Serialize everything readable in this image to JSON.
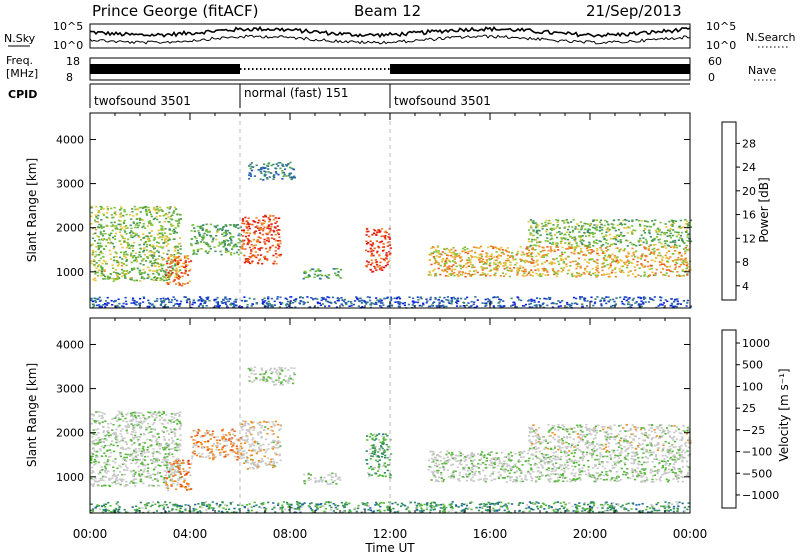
{
  "header": {
    "station": "Prince George (fitACF)",
    "beam": "Beam 12",
    "date": "21/Sep/2013"
  },
  "top_panels": {
    "nsky_label": "N.Sky",
    "nsky_ticks": [
      "10^5",
      "10^0"
    ],
    "nsearch_label": "N.Search",
    "freq_label_1": "Freq.",
    "freq_label_2": "[MHz]",
    "freq_ticks": [
      "18",
      "8"
    ],
    "nave_ticks": [
      "60",
      "0"
    ],
    "nave_label": "Nave",
    "cpid_label": "CPID",
    "modes": [
      {
        "label": "twofsound 3501",
        "start_hour": 0,
        "end_hour": 6
      },
      {
        "label": "normal (fast) 151",
        "start_hour": 6,
        "end_hour": 12
      },
      {
        "label": "twofsound 3501",
        "start_hour": 12,
        "end_hour": 24
      }
    ]
  },
  "chart_data": [
    {
      "type": "heatmap",
      "title": "",
      "quantity": "Power",
      "xlabel": "",
      "ylabel": "Slant Range [km]",
      "xlim": [
        0,
        24
      ],
      "ylim": [
        180,
        4600
      ],
      "yticks": [
        1000,
        2000,
        3000,
        4000
      ],
      "colorbar": {
        "label": "Power [dB]",
        "ticks": [
          "4",
          "8",
          "12",
          "16",
          "20",
          "24",
          "28"
        ],
        "colors": [
          "#0a1ee8",
          "#1e46c8",
          "#2a6fa0",
          "#3e8c6c",
          "#4ea24a",
          "#7cc23c",
          "#e8c43c",
          "#ee8a28",
          "#ee5a1e",
          "#e21c14"
        ]
      },
      "regions": [
        {
          "t0": 0.0,
          "t1": 3.6,
          "r0": 800,
          "r1": 2500,
          "level": 0.55
        },
        {
          "t0": 3.0,
          "t1": 4.0,
          "r0": 700,
          "r1": 1400,
          "level": 0.85
        },
        {
          "t0": 6.0,
          "t1": 7.6,
          "r0": 1200,
          "r1": 2300,
          "level": 0.9
        },
        {
          "t0": 4.0,
          "t1": 6.0,
          "r0": 1400,
          "r1": 2100,
          "level": 0.45
        },
        {
          "t0": 11.0,
          "t1": 12.0,
          "r0": 1000,
          "r1": 2000,
          "level": 0.95
        },
        {
          "t0": 8.5,
          "t1": 10.0,
          "r0": 850,
          "r1": 1100,
          "level": 0.4
        },
        {
          "t0": 13.5,
          "t1": 24.0,
          "r0": 900,
          "r1": 1600,
          "level": 0.7
        },
        {
          "t0": 17.5,
          "t1": 24.0,
          "r0": 1600,
          "r1": 2200,
          "level": 0.5
        },
        {
          "t0": 0.0,
          "t1": 24.0,
          "r0": 200,
          "r1": 450,
          "level": 0.15
        },
        {
          "t0": 6.3,
          "t1": 8.2,
          "r0": 3100,
          "r1": 3500,
          "level": 0.3
        }
      ]
    },
    {
      "type": "heatmap",
      "title": "",
      "quantity": "Velocity",
      "xlabel": "Time UT",
      "ylabel": "Slant Range [km]",
      "xlim": [
        0,
        24
      ],
      "ylim": [
        180,
        4600
      ],
      "xticks": [
        "00:00",
        "04:00",
        "08:00",
        "12:00",
        "16:00",
        "20:00",
        "00:00"
      ],
      "yticks": [
        1000,
        2000,
        3000,
        4000
      ],
      "colorbar": {
        "label": "Velocity [m s⁻¹]",
        "ticks": [
          "1000",
          "500",
          "100",
          "25",
          "−25",
          "−100",
          "−500",
          "−1000"
        ],
        "colors": [
          "#2040c0",
          "#1e64a0",
          "#2e8c5c",
          "#58b83e",
          "#c8c8c8",
          "#c8c8c8",
          "#f08e1e",
          "#ee5a16",
          "#e01c10"
        ]
      },
      "regions": [
        {
          "t0": 0.0,
          "t1": 3.6,
          "r0": 800,
          "r1": 2500,
          "level": 0.5
        },
        {
          "t0": 3.0,
          "t1": 4.0,
          "r0": 700,
          "r1": 1400,
          "level": 0.8
        },
        {
          "t0": 6.0,
          "t1": 7.6,
          "r0": 1200,
          "r1": 2300,
          "level": 0.6
        },
        {
          "t0": 4.0,
          "t1": 6.0,
          "r0": 1400,
          "r1": 2100,
          "level": 0.75
        },
        {
          "t0": 11.0,
          "t1": 12.0,
          "r0": 1000,
          "r1": 2000,
          "level": 0.35
        },
        {
          "t0": 8.5,
          "t1": 10.0,
          "r0": 850,
          "r1": 1100,
          "level": 0.5
        },
        {
          "t0": 13.5,
          "t1": 24.0,
          "r0": 900,
          "r1": 1600,
          "level": 0.5
        },
        {
          "t0": 17.5,
          "t1": 24.0,
          "r0": 1600,
          "r1": 2200,
          "level": 0.55
        },
        {
          "t0": 0.0,
          "t1": 24.0,
          "r0": 200,
          "r1": 450,
          "level": 0.3
        },
        {
          "t0": 6.3,
          "t1": 8.2,
          "r0": 3100,
          "r1": 3500,
          "level": 0.5
        }
      ]
    }
  ]
}
